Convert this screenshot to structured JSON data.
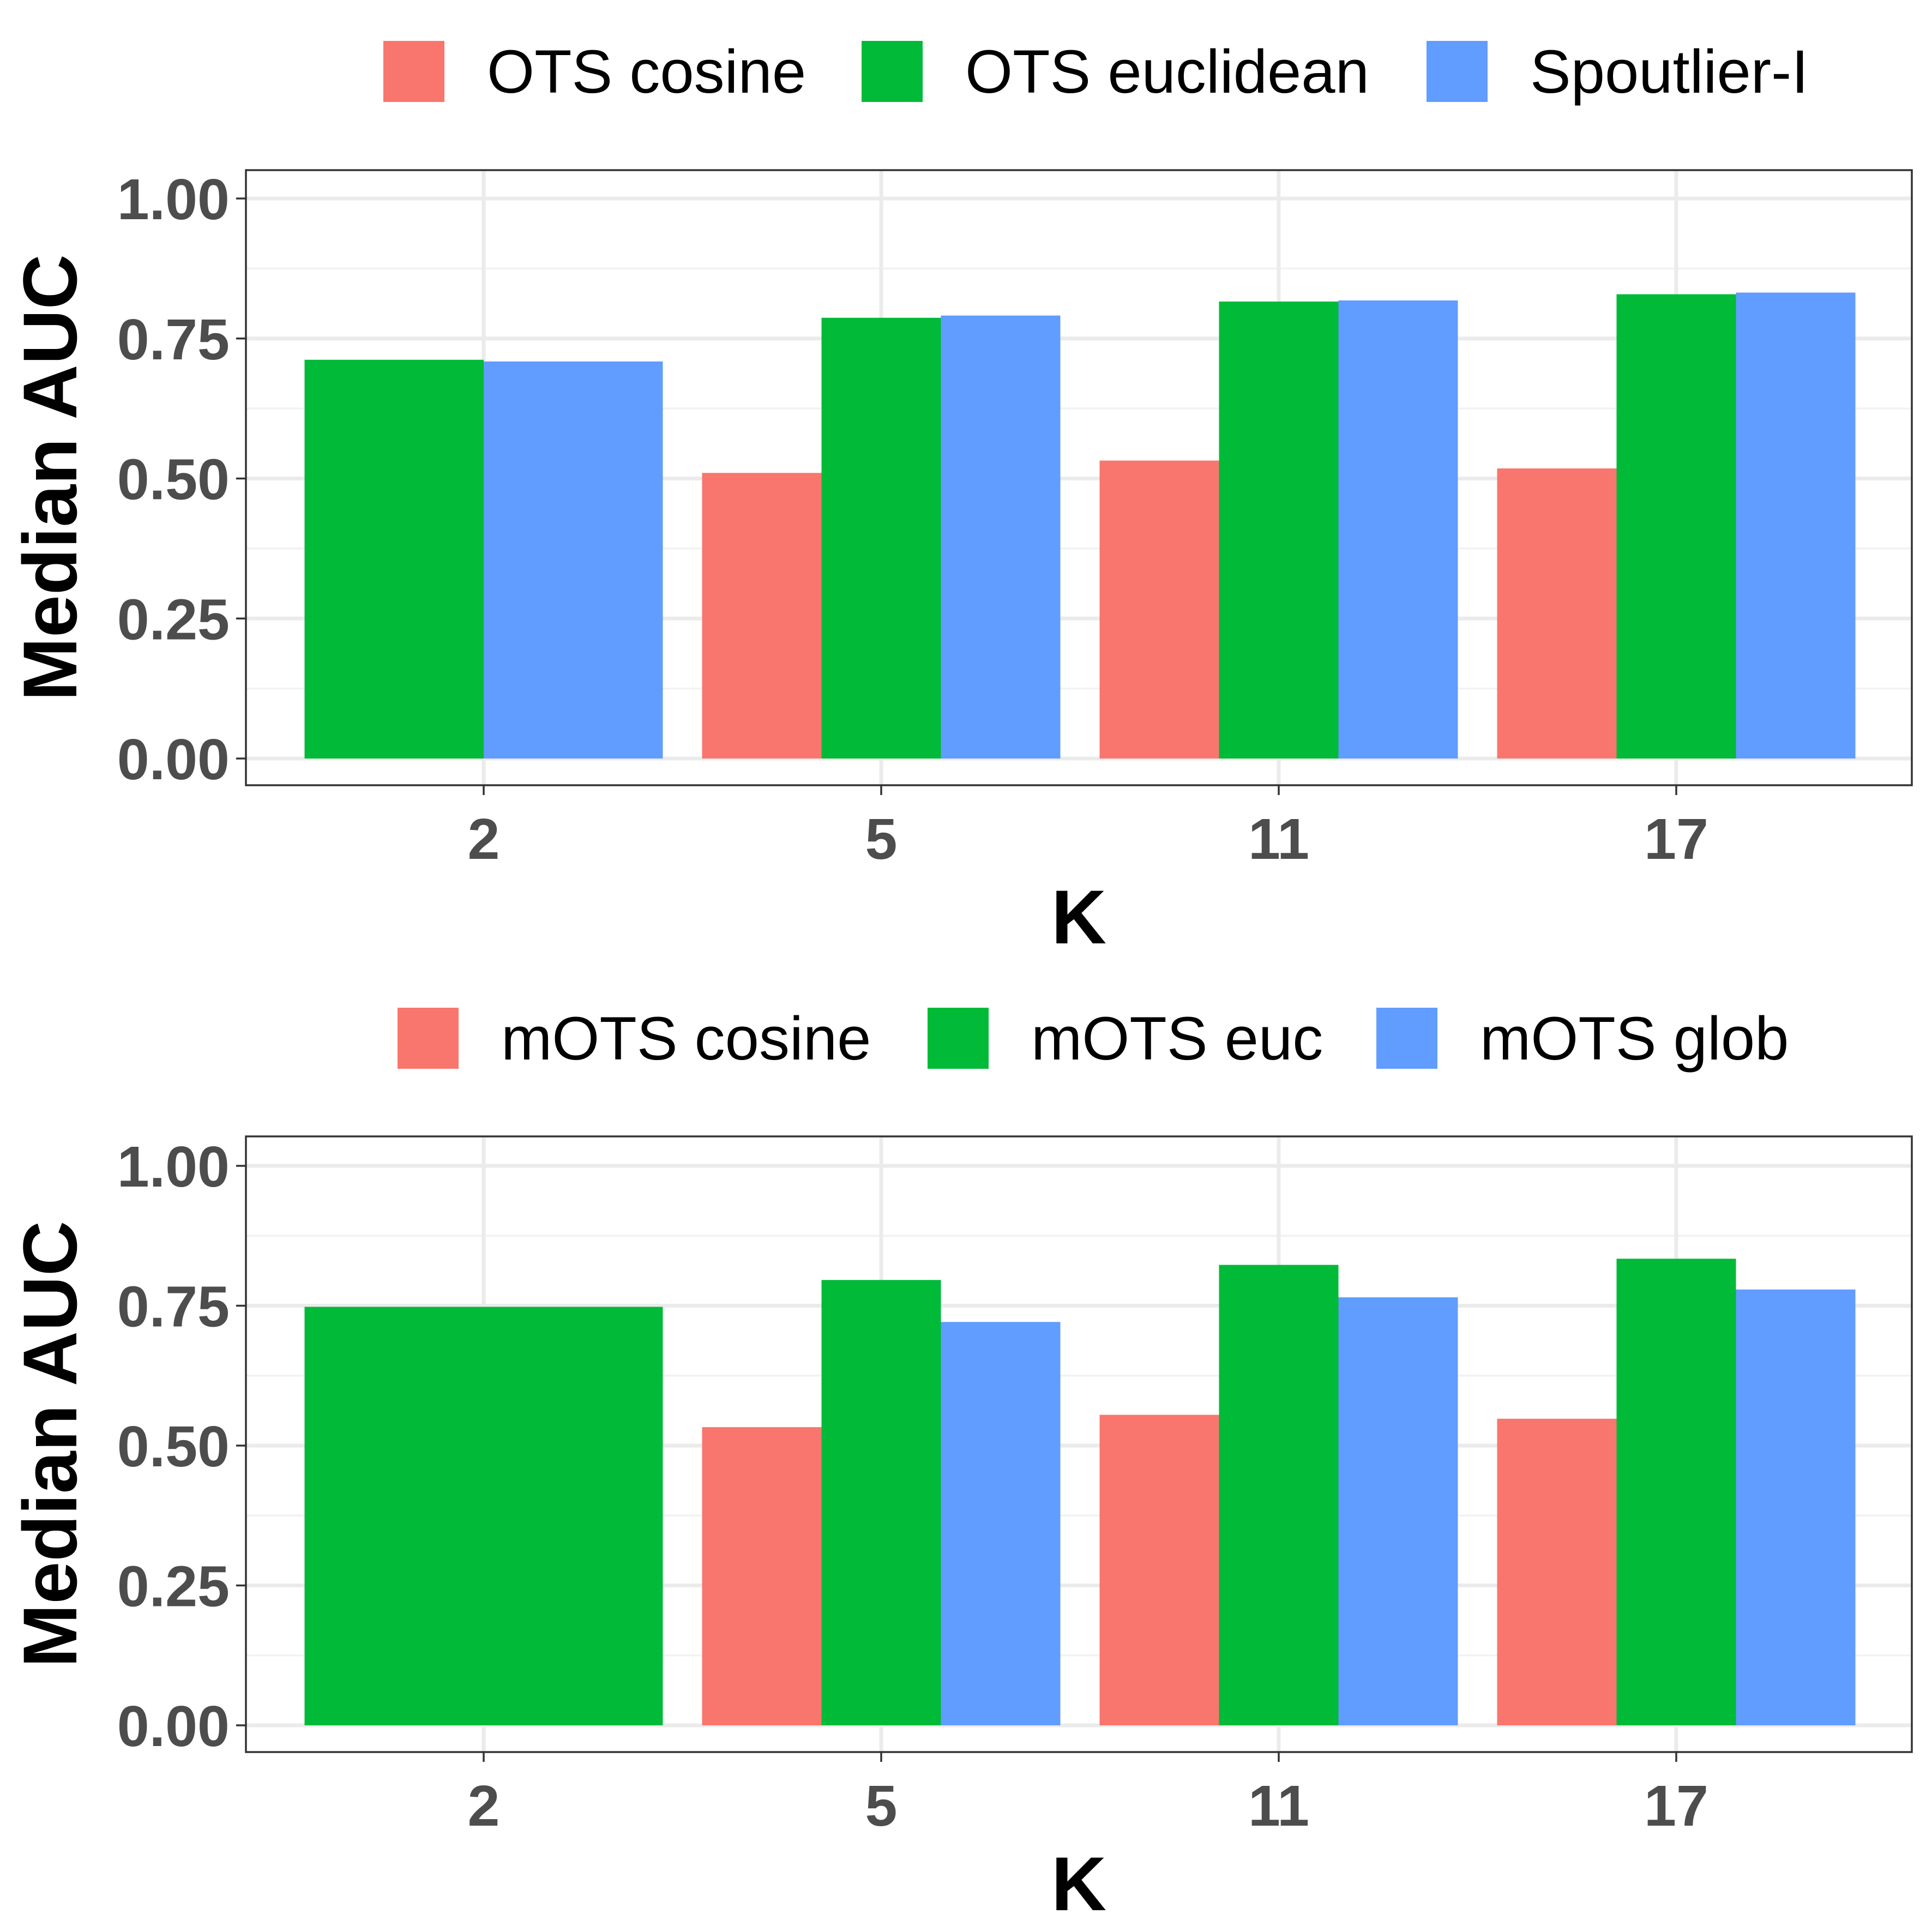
{
  "colors": {
    "red": "#F8766D",
    "green": "#00BA38",
    "blue": "#619CFF"
  },
  "chart_data": [
    {
      "type": "bar",
      "title": "",
      "xlabel": "K",
      "ylabel": "Median AUC",
      "categories": [
        "2",
        "5",
        "11",
        "17"
      ],
      "ylim": [
        0,
        1
      ],
      "y_ticks": [
        "0.00",
        "0.25",
        "0.50",
        "0.75",
        "1.00"
      ],
      "grid": true,
      "legend_position": "top",
      "series": [
        {
          "name": "OTS cosine",
          "color": "#F8766D",
          "values": [
            null,
            0.51,
            0.532,
            0.518
          ]
        },
        {
          "name": "OTS euclidean",
          "color": "#00BA38",
          "values": [
            0.712,
            0.787,
            0.816,
            0.829
          ]
        },
        {
          "name": "Spoutlier-I",
          "color": "#619CFF",
          "values": [
            0.709,
            0.791,
            0.818,
            0.832
          ]
        }
      ]
    },
    {
      "type": "bar",
      "title": "",
      "xlabel": "K",
      "ylabel": "Median AUC",
      "categories": [
        "2",
        "5",
        "11",
        "17"
      ],
      "ylim": [
        0,
        1
      ],
      "y_ticks": [
        "0.00",
        "0.25",
        "0.50",
        "0.75",
        "1.00"
      ],
      "grid": true,
      "legend_position": "top",
      "series": [
        {
          "name": "mOTS cosine",
          "color": "#F8766D",
          "values": [
            null,
            0.533,
            0.555,
            0.548
          ]
        },
        {
          "name": "mOTS euc",
          "color": "#00BA38",
          "values": [
            0.748,
            0.796,
            0.823,
            0.834
          ]
        },
        {
          "name": "mOTS glob",
          "color": "#619CFF",
          "values": [
            null,
            0.721,
            0.765,
            0.779
          ]
        }
      ]
    }
  ]
}
